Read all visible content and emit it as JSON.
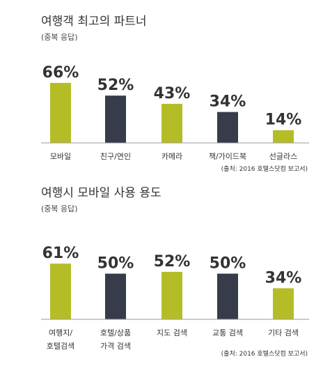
{
  "colors": {
    "lime": "#b5bd26",
    "navy": "#363c49",
    "axis": "#999999"
  },
  "chart_data": [
    {
      "type": "bar",
      "title": "여행객 최고의 파트너",
      "subtitle": "(중복 응답)",
      "categories": [
        "모바일",
        "친구/연인",
        "카메라",
        "책/가이드북",
        "선글라스"
      ],
      "values": [
        66,
        52,
        43,
        34,
        14
      ],
      "value_labels": [
        "66%",
        "52%",
        "43%",
        "34%",
        "14%"
      ],
      "bar_colors": [
        "lime",
        "navy",
        "lime",
        "navy",
        "lime"
      ],
      "source": "(출처: 2016 호텔스닷컴 보고서)",
      "ylim": [
        0,
        100
      ]
    },
    {
      "type": "bar",
      "title": "여행시 모바일 사용 용도",
      "subtitle": "(중복 응답)",
      "categories": [
        "여행지/\n호텔검색",
        "호텔/상품\n가격 검색",
        "지도 검색",
        "교통 검색",
        "기타 검색"
      ],
      "values": [
        61,
        50,
        52,
        50,
        34
      ],
      "value_labels": [
        "61%",
        "50%",
        "52%",
        "50%",
        "34%"
      ],
      "bar_colors": [
        "lime",
        "navy",
        "lime",
        "navy",
        "lime"
      ],
      "source": "(출처: 2016 호텔스닷컴 보고서)",
      "ylim": [
        0,
        100
      ]
    }
  ]
}
